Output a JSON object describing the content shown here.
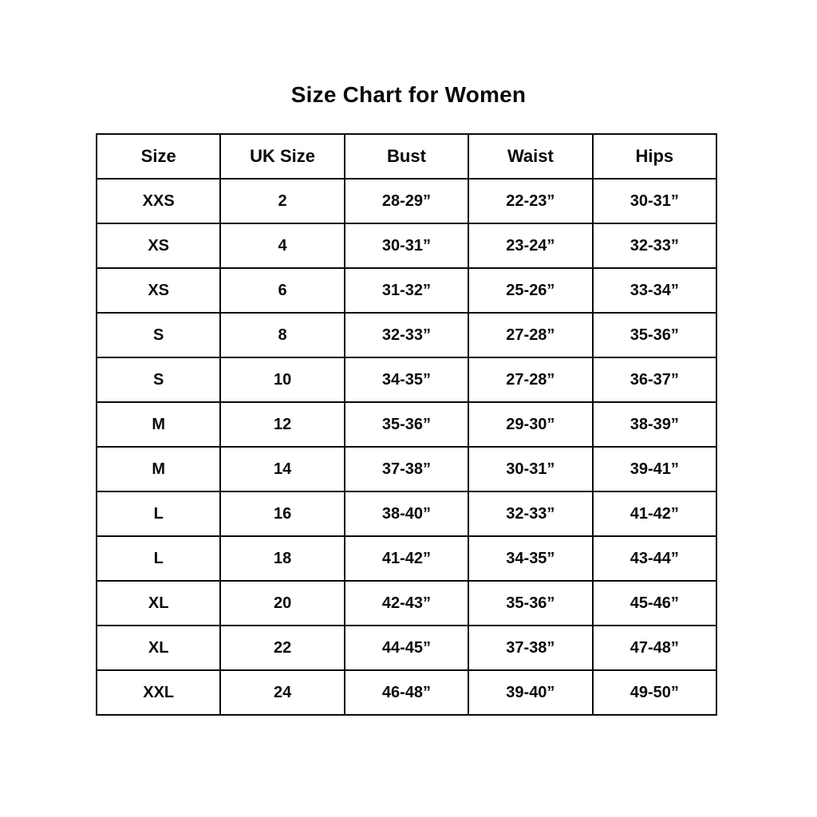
{
  "page": {
    "title": "Size Chart for Women"
  },
  "chart_data": {
    "type": "table",
    "title": "Size Chart for Women",
    "columns": [
      "Size",
      "UK Size",
      "Bust",
      "Waist",
      "Hips"
    ],
    "rows": [
      [
        "XXS",
        "2",
        "28-29”",
        "22-23”",
        "30-31”"
      ],
      [
        "XS",
        "4",
        "30-31”",
        "23-24”",
        "32-33”"
      ],
      [
        "XS",
        "6",
        "31-32”",
        "25-26”",
        "33-34”"
      ],
      [
        "S",
        "8",
        "32-33”",
        "27-28”",
        "35-36”"
      ],
      [
        "S",
        "10",
        "34-35”",
        "27-28”",
        "36-37”"
      ],
      [
        "M",
        "12",
        "35-36”",
        "29-30”",
        "38-39”"
      ],
      [
        "M",
        "14",
        "37-38”",
        "30-31”",
        "39-41”"
      ],
      [
        "L",
        "16",
        "38-40”",
        "32-33”",
        "41-42”"
      ],
      [
        "L",
        "18",
        "41-42”",
        "34-35”",
        "43-44”"
      ],
      [
        "XL",
        "20",
        "42-43”",
        "35-36”",
        "45-46”"
      ],
      [
        "XL",
        "22",
        "44-45”",
        "37-38”",
        "47-48”"
      ],
      [
        "XXL",
        "24",
        "46-48”",
        "39-40”",
        "49-50”"
      ]
    ],
    "layout": {
      "grid": true,
      "text_color": "#0a0a0a",
      "background_color": "#ffffff",
      "border_color": "#0a0a0a"
    }
  }
}
